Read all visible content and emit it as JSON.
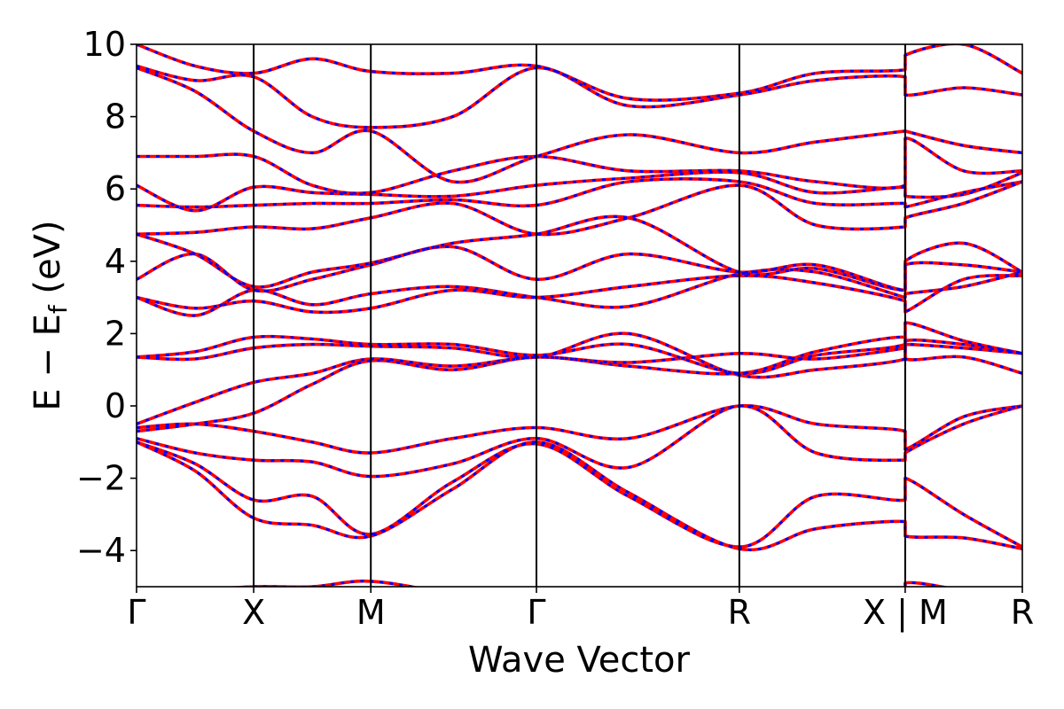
{
  "chart_data": {
    "type": "line",
    "title": "",
    "xlabel": "Wave Vector",
    "ylabel": "E − E",
    "ylabel_sub": "f",
    "ylabel_unit": " (eV)",
    "ylim": [
      -5,
      10
    ],
    "yticks": [
      -4,
      -2,
      0,
      2,
      4,
      6,
      8,
      10
    ],
    "ytick_labels": [
      "−4",
      "−2",
      "0",
      "2",
      "4",
      "6",
      "8",
      "10"
    ],
    "kpoints": [
      {
        "label": "Γ",
        "x": 0.0
      },
      {
        "label": "X",
        "x": 0.5
      },
      {
        "label": "M",
        "x": 1.0
      },
      {
        "label": "Γ",
        "x": 1.707
      },
      {
        "label": "R",
        "x": 2.573
      },
      {
        "label": "X | M",
        "x": 3.281
      },
      {
        "label": "R",
        "x": 3.781
      }
    ],
    "xlim": [
      0,
      3.781
    ],
    "grid": false,
    "colors": {
      "series_1": "#ff0000",
      "series_2": "#0000ff"
    },
    "line_styles": {
      "series_1": "solid",
      "series_2": "dotted"
    },
    "bands": [
      {
        "x": [
          0,
          0.25,
          0.5,
          0.75,
          1,
          1.35,
          1.707,
          2.1,
          2.573,
          2.9,
          3.281,
          3.281,
          3.53,
          3.781
        ],
        "y": [
          -1,
          -1.8,
          -3.1,
          -3.3,
          -3.6,
          -2.3,
          -1,
          -2.4,
          -3.95,
          -3.4,
          -3.2,
          -3.6,
          -3.65,
          -3.95
        ]
      },
      {
        "x": [
          0,
          0.25,
          0.5,
          0.75,
          1,
          1.35,
          1.707,
          2.1,
          2.573,
          2.9,
          3.281,
          3.281,
          3.53,
          3.781
        ],
        "y": [
          -1,
          -1.6,
          -2.6,
          -2.5,
          -3.55,
          -2.1,
          -1.05,
          -2.5,
          -3.9,
          -2.5,
          -2.6,
          -2.0,
          -3.0,
          -3.9
        ]
      },
      {
        "x": [
          0,
          0.25,
          0.5,
          0.75,
          1,
          1.35,
          1.707,
          2.1,
          2.573,
          2.9,
          3.281,
          3.281,
          3.53,
          3.781
        ],
        "y": [
          -0.9,
          -1.3,
          -1.5,
          -1.55,
          -1.95,
          -1.6,
          -0.9,
          -1.7,
          0,
          -1.3,
          -1.5,
          -1.3,
          -0.5,
          0
        ]
      },
      {
        "x": [
          0,
          0.25,
          0.5,
          0.75,
          1,
          1.35,
          1.707,
          2.1,
          2.573,
          2.9,
          3.281,
          3.281,
          3.53,
          3.781
        ],
        "y": [
          -0.6,
          -0.5,
          -0.7,
          -1.0,
          -1.3,
          -0.9,
          -0.6,
          -0.9,
          0,
          -0.5,
          -0.7,
          -1.2,
          -0.3,
          0
        ]
      },
      {
        "x": [
          0,
          0.25,
          0.5,
          0.75,
          1,
          1.35,
          1.707,
          2.1,
          2.573,
          2.9,
          3.281,
          3.281,
          3.53,
          3.781
        ],
        "y": [
          -0.7,
          -0.5,
          -0.2,
          0.6,
          1.25,
          1.0,
          1.35,
          1.1,
          0.9,
          1.5,
          1.9,
          1.3,
          1.35,
          0.9
        ]
      },
      {
        "x": [
          0,
          0.25,
          0.5,
          0.75,
          1,
          1.35,
          1.707,
          2.1,
          2.573,
          2.9,
          3.281,
          3.281,
          3.53,
          3.781
        ],
        "y": [
          -0.5,
          0.1,
          0.65,
          0.9,
          1.3,
          1.1,
          1.35,
          1.2,
          1.45,
          1.3,
          1.6,
          1.7,
          1.6,
          1.45
        ]
      },
      {
        "x": [
          0,
          0.25,
          0.5,
          0.75,
          1,
          1.35,
          1.707,
          2.1,
          2.573,
          2.9,
          3.281,
          3.281,
          3.53,
          3.781
        ],
        "y": [
          1.35,
          1.3,
          1.6,
          1.7,
          1.65,
          1.6,
          1.35,
          2.0,
          0.85,
          1.0,
          1.3,
          1.8,
          1.7,
          1.45
        ]
      },
      {
        "x": [
          0,
          0.25,
          0.5,
          0.75,
          1,
          1.35,
          1.707,
          2.1,
          2.573,
          2.9,
          3.281,
          3.281,
          3.53,
          3.781
        ],
        "y": [
          1.35,
          1.5,
          1.9,
          1.85,
          1.7,
          1.7,
          1.4,
          1.7,
          0.9,
          1.4,
          1.7,
          2.3,
          1.8,
          1.45
        ]
      },
      {
        "x": [
          0,
          0.25,
          0.5,
          0.75,
          1,
          1.35,
          1.707,
          2.1,
          2.573,
          2.9,
          3.281,
          3.281,
          3.53,
          3.781
        ],
        "y": [
          3.0,
          2.7,
          2.9,
          2.6,
          2.7,
          3.2,
          3.0,
          3.3,
          3.6,
          3.4,
          2.9,
          2.6,
          3.5,
          3.6
        ]
      },
      {
        "x": [
          0,
          0.25,
          0.5,
          0.75,
          1,
          1.35,
          1.707,
          2.1,
          2.573,
          2.9,
          3.281,
          3.281,
          3.53,
          3.781
        ],
        "y": [
          3.0,
          2.5,
          3.2,
          2.8,
          3.1,
          3.3,
          3.0,
          2.75,
          3.65,
          3.7,
          3.0,
          3.1,
          3.3,
          3.7
        ]
      },
      {
        "x": [
          0,
          0.25,
          0.5,
          0.75,
          1,
          1.35,
          1.707,
          2.1,
          2.573,
          2.9,
          3.281,
          3.281,
          3.53,
          3.781
        ],
        "y": [
          3.5,
          4.2,
          3.2,
          3.5,
          3.9,
          4.4,
          3.5,
          4.2,
          3.7,
          3.9,
          3.2,
          3.9,
          3.9,
          3.7
        ]
      },
      {
        "x": [
          0,
          0.25,
          0.5,
          0.75,
          1,
          1.35,
          1.707,
          2.1,
          2.573,
          2.9,
          3.281,
          3.281,
          3.53,
          3.781
        ],
        "y": [
          4.75,
          4.2,
          3.3,
          3.7,
          3.95,
          4.5,
          4.75,
          5.2,
          3.7,
          3.8,
          3.2,
          4.0,
          4.5,
          3.7
        ]
      },
      {
        "x": [
          0,
          0.25,
          0.5,
          0.75,
          1,
          1.35,
          1.707,
          2.1,
          2.573,
          2.9,
          3.281,
          3.281,
          3.53,
          3.781
        ],
        "y": [
          4.75,
          4.8,
          4.95,
          4.9,
          5.2,
          5.6,
          4.75,
          5.2,
          6.1,
          5.0,
          4.95,
          5.2,
          5.6,
          6.2
        ]
      },
      {
        "x": [
          0,
          0.25,
          0.5,
          0.75,
          1,
          1.35,
          1.707,
          2.1,
          2.573,
          2.9,
          3.281,
          3.281,
          3.53,
          3.781
        ],
        "y": [
          5.55,
          5.5,
          5.55,
          5.6,
          5.6,
          5.7,
          5.55,
          6.2,
          6.2,
          5.6,
          5.6,
          5.5,
          5.9,
          6.2
        ]
      },
      {
        "x": [
          0,
          0.25,
          0.5,
          0.75,
          1,
          1.35,
          1.707,
          2.1,
          2.573,
          2.9,
          3.281,
          3.281,
          3.53,
          3.781
        ],
        "y": [
          6.1,
          5.4,
          6.05,
          5.9,
          5.85,
          5.8,
          6.1,
          6.3,
          6.45,
          5.9,
          6.05,
          5.8,
          5.85,
          6.45
        ]
      },
      {
        "x": [
          0,
          0.25,
          0.5,
          0.75,
          1,
          1.35,
          1.707,
          2.1,
          2.573,
          2.9,
          3.281,
          3.281,
          3.53,
          3.781
        ],
        "y": [
          6.9,
          6.9,
          6.9,
          6.1,
          5.9,
          6.5,
          6.9,
          6.5,
          6.5,
          6.2,
          6.1,
          7.4,
          6.5,
          6.5
        ]
      },
      {
        "x": [
          0,
          0.25,
          0.5,
          0.75,
          1,
          1.35,
          1.707,
          2.1,
          2.573,
          2.9,
          3.281,
          3.281,
          3.53,
          3.781
        ],
        "y": [
          9.35,
          8.7,
          7.6,
          7.0,
          7.6,
          6.2,
          6.9,
          7.5,
          7.0,
          7.3,
          7.6,
          7.6,
          7.2,
          7.0
        ]
      },
      {
        "x": [
          0,
          0.25,
          0.5,
          0.75,
          1,
          1.35,
          1.707,
          2.1,
          2.573,
          2.9,
          3.281,
          3.281,
          3.53,
          3.781
        ],
        "y": [
          9.4,
          9.0,
          9.1,
          8.0,
          7.7,
          8.0,
          9.35,
          8.3,
          8.6,
          9.0,
          9.1,
          8.6,
          8.8,
          8.6
        ]
      },
      {
        "x": [
          0,
          0.25,
          0.5,
          0.75,
          1,
          1.35,
          1.707,
          2.1,
          2.573,
          2.9,
          3.281,
          3.281,
          3.53,
          3.781
        ],
        "y": [
          10.0,
          9.4,
          9.2,
          9.6,
          9.25,
          9.2,
          9.4,
          8.5,
          8.65,
          9.2,
          9.3,
          9.7,
          10.0,
          9.2
        ]
      },
      {
        "x": [
          0,
          0.25,
          0.5,
          0.75,
          1,
          1.35,
          1.707,
          2.1,
          2.573,
          2.9,
          3.281,
          3.281,
          3.53,
          3.781
        ],
        "y": [
          -5.2,
          -5.1,
          -5.0,
          -5.0,
          -4.85,
          -5.2,
          -5.5,
          -5.5,
          -5.5,
          -5.5,
          -5.5,
          -4.9,
          -5.1,
          -5.3
        ]
      }
    ]
  }
}
